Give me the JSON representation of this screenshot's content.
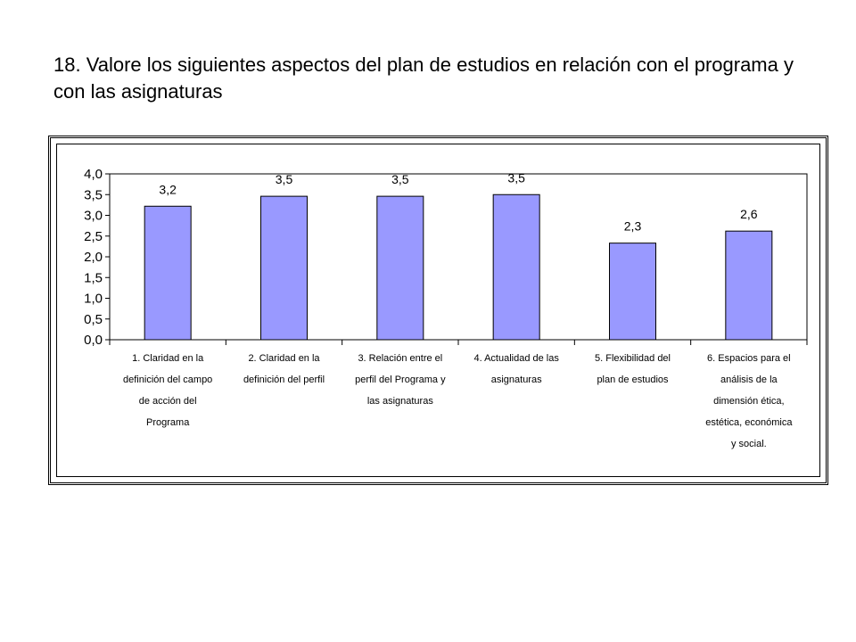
{
  "page": {
    "title": "18.  Valore los siguientes aspectos del plan de estudios  en relación con el programa y con las asignaturas"
  },
  "chart_data": {
    "type": "bar",
    "title": "",
    "xlabel": "",
    "ylabel": "",
    "ylim": [
      0,
      4.0
    ],
    "y_ticks": [
      "0,0",
      "0,5",
      "1,0",
      "1,5",
      "2,0",
      "2,5",
      "3,0",
      "3,5",
      "4,0"
    ],
    "bar_color": "#9999FF",
    "grid": false,
    "legend": "none",
    "categories": [
      [
        "1.  Claridad en la",
        "definición del campo",
        "de acción del",
        "Programa"
      ],
      [
        "2.  Claridad en la",
        "definición del perfil"
      ],
      [
        "3.  Relación entre el",
        "perfil del Programa y",
        "las asignaturas"
      ],
      [
        "4.  Actualidad de las",
        "asignaturas"
      ],
      [
        "5.  Flexibilidad del",
        "plan de estudios"
      ],
      [
        "6.  Espacios para el",
        "análisis de la",
        "dimensión ética,",
        "estética, económica",
        "y social."
      ]
    ],
    "values": [
      3.22,
      3.46,
      3.46,
      3.5,
      2.33,
      2.62
    ],
    "data_labels": [
      "3,2",
      "3,5",
      "3,5",
      "3,5",
      "2,3",
      "2,6"
    ]
  }
}
